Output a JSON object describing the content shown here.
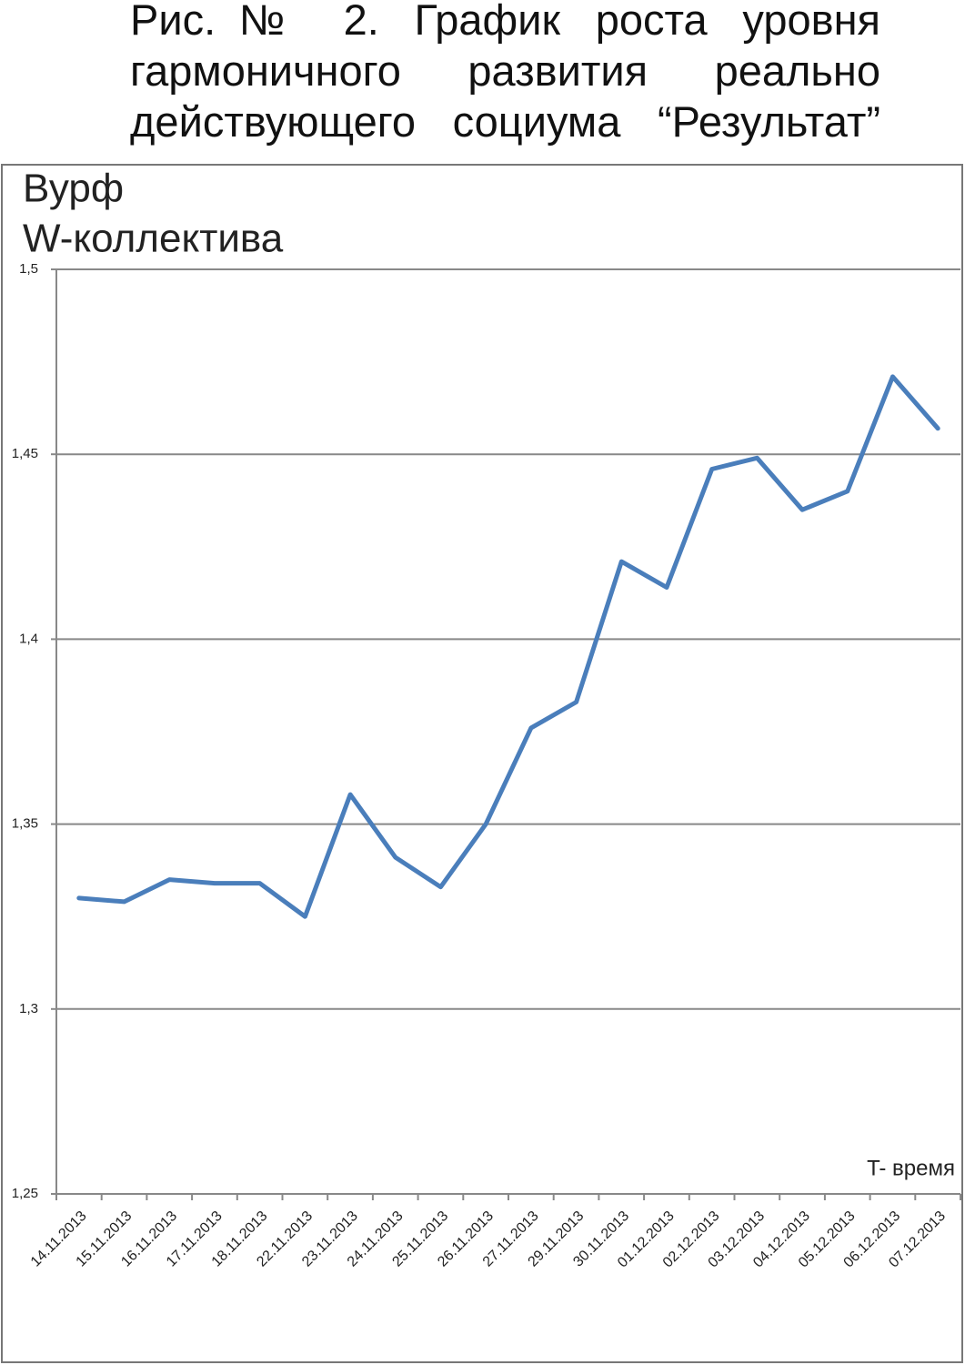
{
  "chart_data": {
    "type": "line",
    "title_lines": [
      "Рис.№ 2. График роста уровня",
      "гармоничного развития реально",
      "действующего социума “Результат”"
    ],
    "ylabel_lines": [
      "Вурф",
      "W-коллектива"
    ],
    "xlabel": "T- время",
    "categories": [
      "14.11.2013",
      "15.11.2013",
      "16.11.2013",
      "17.11.2013",
      "18.11.2013",
      "22.11.2013",
      "23.11.2013",
      "24.11.2013",
      "25.11.2013",
      "26.11.2013",
      "27.11.2013",
      "29.11.2013",
      "30.11.2013",
      "01.12.2013",
      "02.12.2013",
      "03.12.2013",
      "04.12.2013",
      "05.12.2013",
      "06.12.2013",
      "07.12.2013"
    ],
    "series": [
      {
        "color": "#4a7ebb",
        "values": [
          1.33,
          1.329,
          1.335,
          1.334,
          1.334,
          1.325,
          1.358,
          1.341,
          1.333,
          1.35,
          1.376,
          1.383,
          1.421,
          1.414,
          1.446,
          1.449,
          1.435,
          1.44,
          1.471,
          1.457
        ]
      }
    ],
    "ylim": [
      1.25,
      1.5
    ],
    "yticks": [
      {
        "value": 1.25,
        "label": "1,25"
      },
      {
        "value": 1.3,
        "label": "1,3"
      },
      {
        "value": 1.35,
        "label": "1,35"
      },
      {
        "value": 1.4,
        "label": "1,4"
      },
      {
        "value": 1.45,
        "label": "1,45"
      },
      {
        "value": 1.5,
        "label": "1,5"
      }
    ],
    "grid": true
  }
}
